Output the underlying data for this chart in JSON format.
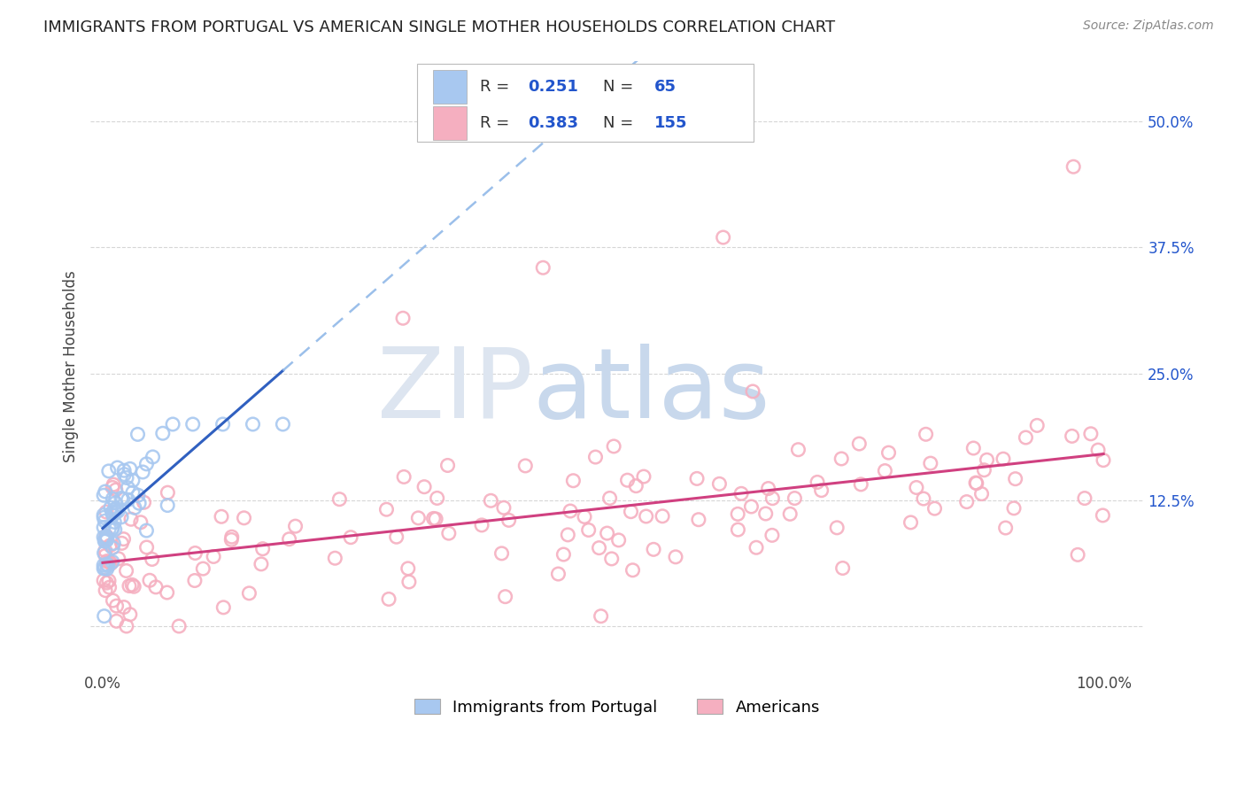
{
  "title": "IMMIGRANTS FROM PORTUGAL VS AMERICAN SINGLE MOTHER HOUSEHOLDS CORRELATION CHART",
  "source_text": "Source: ZipAtlas.com",
  "ylabel": "Single Mother Households",
  "ytick_labels": [
    "",
    "12.5%",
    "25.0%",
    "37.5%",
    "50.0%"
  ],
  "ytick_values": [
    0.0,
    0.125,
    0.25,
    0.375,
    0.5
  ],
  "xtick_values": [
    0.0,
    0.25,
    0.5,
    0.75,
    1.0
  ],
  "xlim": [
    -0.012,
    1.04
  ],
  "ylim": [
    -0.045,
    0.56
  ],
  "blue_R": 0.251,
  "blue_N": 65,
  "pink_R": 0.383,
  "pink_N": 155,
  "blue_scatter_color": "#a8c8f0",
  "pink_scatter_color": "#f5afc0",
  "blue_line_color": "#3060c0",
  "pink_line_color": "#d04080",
  "blue_dash_color": "#90b8e8",
  "legend_label_blue": "Immigrants from Portugal",
  "legend_label_pink": "Americans",
  "watermark_zip": "ZIP",
  "watermark_atlas": "atlas",
  "watermark_color": "#dde5f0",
  "background_color": "#ffffff",
  "grid_color": "#cccccc",
  "title_fontsize": 13,
  "axis_fontsize": 12,
  "legend_fontsize": 13,
  "rn_fontsize": 13,
  "rn_value_color": "#2255cc"
}
